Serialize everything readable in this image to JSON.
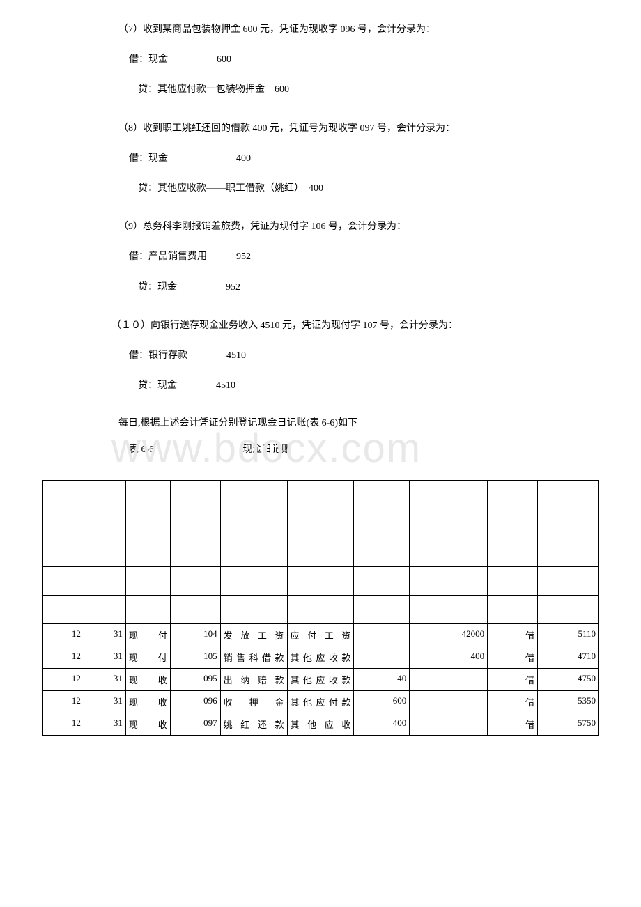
{
  "entries": [
    {
      "header": "（7）收到某商品包装物押金 600 元，凭证为现收字 096 号，会计分录为：",
      "debit": "借：现金　　　　　600",
      "credit": "贷：其他应付款一包装物押金　600"
    },
    {
      "header": "（8）收到职工姚红还回的借款 400 元，凭证号为现收字 097 号，会计分录为：",
      "debit": "借：现金　　　　　　　400",
      "credit": "贷：其他应收款——职工借款（姚红）　400"
    },
    {
      "header": "（9）总务科李刚报销差旅费，凭证为现付字 106 号，会计分录为：",
      "debit": "借：产品销售费用　　　952",
      "credit": "贷：现金　　　　　952"
    },
    {
      "header": "（１０）向银行送存现金业务收入 4510 元，凭证为现付字 107 号，会计分录为：",
      "debit": "借：银行存款　　　　4510",
      "credit": "贷：现金　　　　4510"
    }
  ],
  "footer_text": "每日,根据上述会计凭证分别登记现金日记账(表 6-6)如下",
  "table_label": "表 6-6",
  "table_title": "现金日记账",
  "watermark": "www.bdocx.com",
  "table": {
    "columns": [
      {
        "width": "7.5%"
      },
      {
        "width": "7.5%"
      },
      {
        "width": "8%"
      },
      {
        "width": "9%"
      },
      {
        "width": "12%"
      },
      {
        "width": "12%"
      },
      {
        "width": "10%"
      },
      {
        "width": "14%"
      },
      {
        "width": "9%"
      },
      {
        "width": "11%"
      }
    ],
    "rows": [
      {
        "type": "header",
        "cells": [
          "",
          "",
          "",
          "",
          "",
          "",
          "",
          "",
          "",
          ""
        ]
      },
      {
        "type": "empty",
        "cells": [
          "",
          "",
          "",
          "",
          "",
          "",
          "",
          "",
          "",
          ""
        ]
      },
      {
        "type": "empty",
        "cells": [
          "",
          "",
          "",
          "",
          "",
          "",
          "",
          "",
          "",
          ""
        ]
      },
      {
        "type": "empty",
        "cells": [
          "",
          "",
          "",
          "",
          "",
          "",
          "",
          "",
          "",
          ""
        ]
      },
      {
        "type": "data",
        "cells": [
          "12",
          "31",
          "现付",
          "104",
          "发放工资",
          "应付工资",
          "",
          "42000",
          "借",
          "5110"
        ]
      },
      {
        "type": "data",
        "cells": [
          "12",
          "31",
          "现付",
          "105",
          "销售科借款",
          "其他应收款",
          "",
          "400",
          "借",
          "4710"
        ]
      },
      {
        "type": "data",
        "cells": [
          "12",
          "31",
          "现收",
          "095",
          "出纳赔款",
          "其他应收款",
          "40",
          "",
          "借",
          "4750"
        ]
      },
      {
        "type": "data",
        "cells": [
          "12",
          "31",
          "现收",
          "096",
          "收押金",
          "其他应付款",
          "600",
          "",
          "借",
          "5350"
        ]
      },
      {
        "type": "data",
        "cells": [
          "12",
          "31",
          "现收",
          "097",
          "姚红还款",
          "其他应收",
          "400",
          "",
          "借",
          "5750"
        ]
      }
    ]
  }
}
